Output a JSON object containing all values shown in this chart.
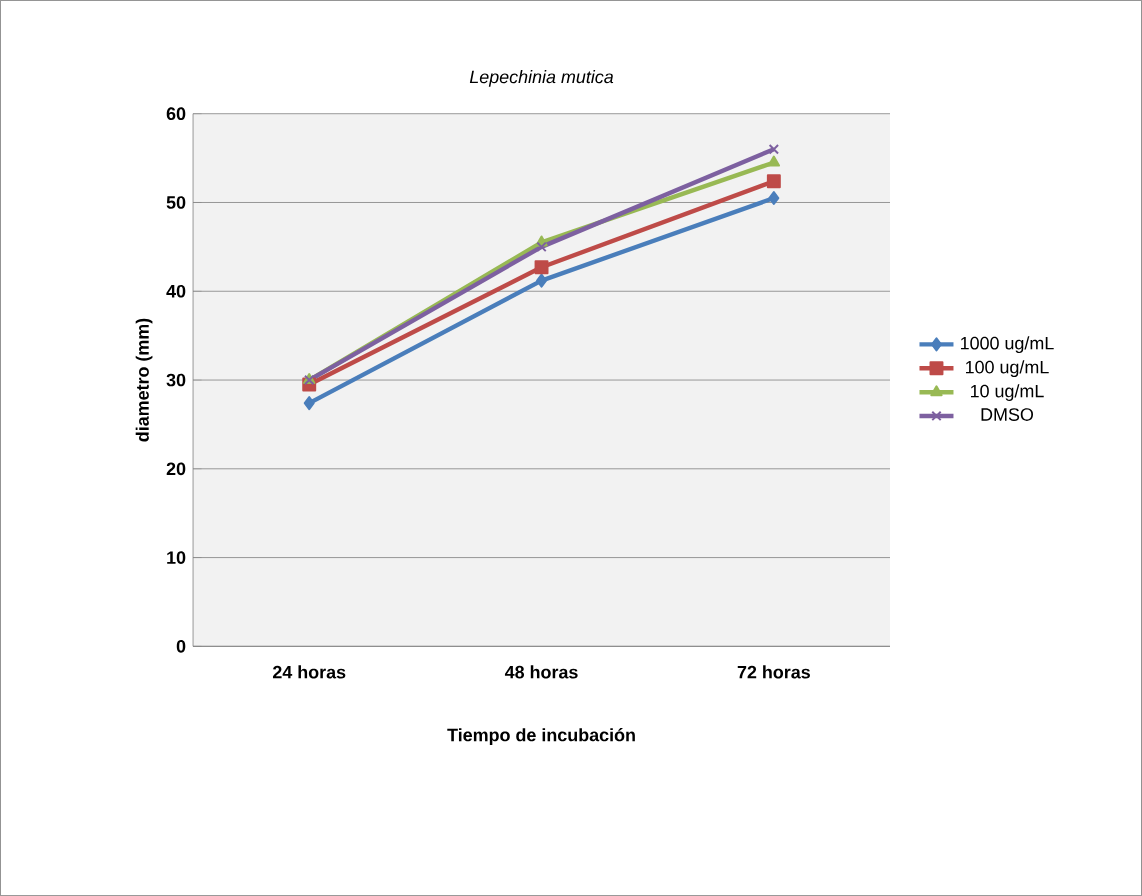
{
  "chart_data": {
    "type": "line",
    "title": "*Lepechinia mutica*",
    "xlabel": "Tiempo de incubación",
    "ylabel": "diametro (mm)",
    "categories": [
      "24 horas",
      "48 horas",
      "72 horas"
    ],
    "series": [
      {
        "name": "1000 ug/mL",
        "color": "#4a7ebb",
        "marker": "diamond",
        "values": [
          27.4,
          41.2,
          50.5
        ]
      },
      {
        "name": "100 ug/mL",
        "color": "#be4b48",
        "marker": "square",
        "values": [
          29.5,
          42.7,
          52.4
        ]
      },
      {
        "name": "10 ug/mL",
        "color": "#98b954",
        "marker": "triangle",
        "values": [
          30,
          45.5,
          54.5
        ]
      },
      {
        "name": "DMSO",
        "color": "#7d60a0",
        "marker": "cross",
        "values": [
          30,
          45,
          56
        ]
      }
    ],
    "ylim": [
      0,
      60
    ],
    "yticks": [
      0,
      10,
      20,
      30,
      40,
      50,
      60
    ],
    "grid": "y",
    "legend": "right"
  }
}
